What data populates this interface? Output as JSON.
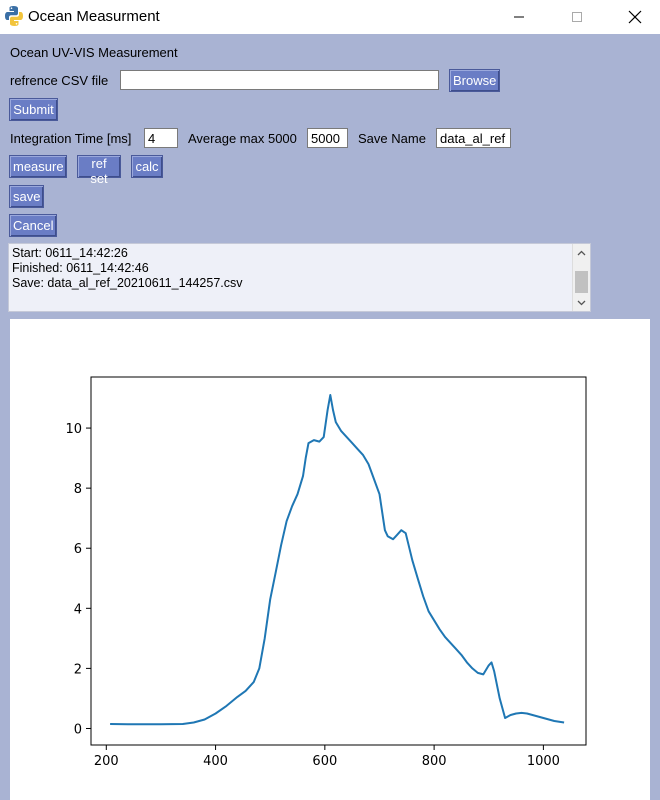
{
  "window": {
    "title": "Ocean Measurment"
  },
  "form": {
    "heading": "Ocean UV-VIS Measurement",
    "ref_label": "refrence CSV file",
    "ref_value": "",
    "browse_label": "Browse",
    "submit_label": "Submit",
    "integration_label": "Integration Time [ms]",
    "integration_value": "4",
    "average_label": "Average max 5000",
    "average_value": "5000",
    "savename_label": "Save Name",
    "savename_value": "data_al_ref",
    "measure_label": "measure",
    "refset_label": "ref set",
    "calc_label": "calc",
    "save_label": "save",
    "cancel_label": "Cancel"
  },
  "log": {
    "lines": [
      "Start: 0611_14:42:26",
      "Finished: 0611_14:42:46",
      "Save: data_al_ref_20210611_144257.csv"
    ]
  },
  "colors": {
    "client_bg": "#a9b3d3",
    "button_bg": "#6a7dc5",
    "line": "#1f77b4"
  },
  "chart_data": {
    "type": "line",
    "title": "",
    "xlabel": "",
    "ylabel": "",
    "xlim": [
      172,
      1078
    ],
    "ylim": [
      -0.55,
      11.7
    ],
    "xticks": [
      200,
      400,
      600,
      800,
      1000
    ],
    "yticks": [
      0,
      2,
      4,
      6,
      8,
      10
    ],
    "grid": false,
    "series": [
      {
        "color": "#1f77b4",
        "x": [
          207,
          250,
          300,
          340,
          360,
          380,
          400,
          420,
          440,
          455,
          470,
          480,
          490,
          500,
          510,
          520,
          530,
          540,
          550,
          560,
          565,
          570,
          580,
          590,
          598,
          605,
          610,
          615,
          620,
          630,
          640,
          650,
          660,
          670,
          680,
          690,
          700,
          710,
          715,
          720,
          725,
          730,
          740,
          748,
          752,
          760,
          770,
          780,
          790,
          800,
          810,
          820,
          830,
          840,
          850,
          860,
          870,
          880,
          890,
          900,
          905,
          910,
          920,
          930,
          940,
          950,
          960,
          970,
          980,
          1000,
          1020,
          1038
        ],
        "y": [
          0.15,
          0.14,
          0.14,
          0.15,
          0.2,
          0.3,
          0.5,
          0.75,
          1.05,
          1.25,
          1.55,
          2.0,
          3.0,
          4.3,
          5.2,
          6.1,
          6.9,
          7.4,
          7.8,
          8.4,
          9.0,
          9.5,
          9.6,
          9.55,
          9.7,
          10.6,
          11.1,
          10.6,
          10.2,
          9.9,
          9.7,
          9.5,
          9.3,
          9.1,
          8.8,
          8.3,
          7.8,
          6.6,
          6.4,
          6.35,
          6.3,
          6.4,
          6.6,
          6.5,
          6.2,
          5.6,
          5.0,
          4.4,
          3.9,
          3.6,
          3.3,
          3.05,
          2.85,
          2.65,
          2.45,
          2.2,
          2.0,
          1.85,
          1.8,
          2.1,
          2.2,
          1.9,
          1.0,
          0.35,
          0.45,
          0.5,
          0.52,
          0.5,
          0.45,
          0.35,
          0.25,
          0.2
        ]
      }
    ]
  }
}
